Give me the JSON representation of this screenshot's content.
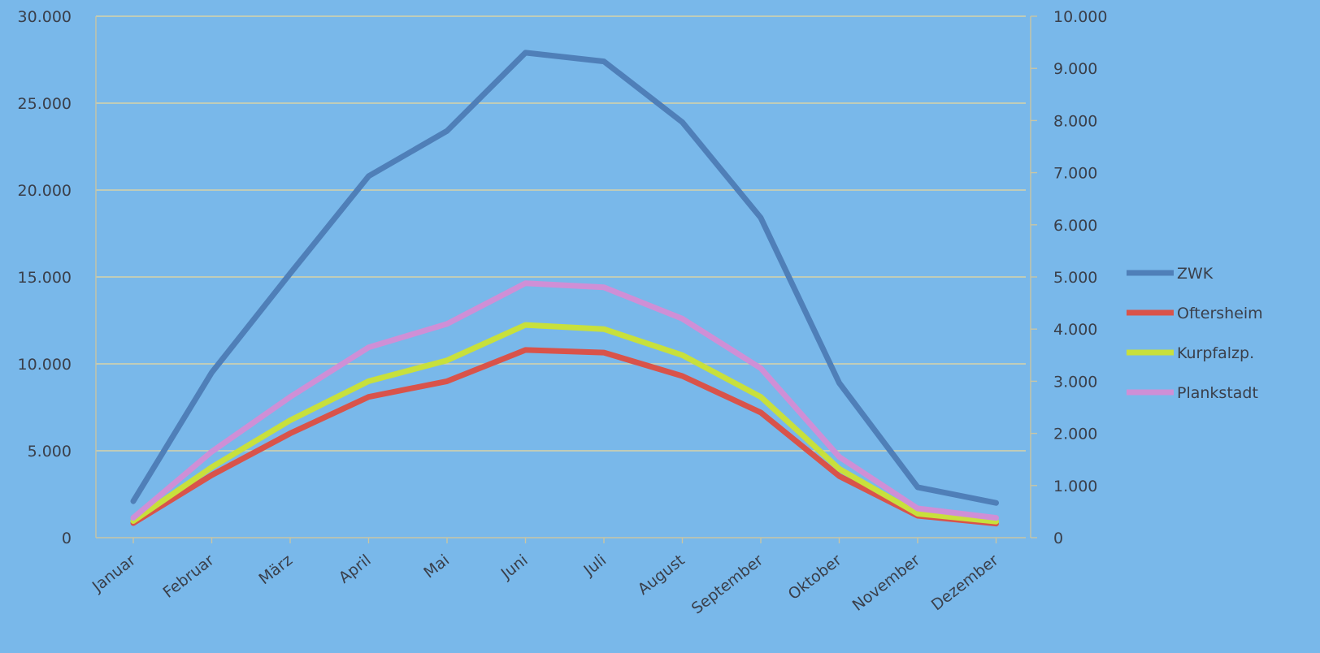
{
  "chart_data": {
    "type": "line",
    "title": "",
    "xlabel": "",
    "ylabel": "",
    "categories": [
      "Januar",
      "Februar",
      "März",
      "April",
      "Mai",
      "Juni",
      "Juli",
      "August",
      "September",
      "Oktober",
      "November",
      "Dezember"
    ],
    "y_left": {
      "min": 0,
      "max": 30000,
      "ticks": [
        0,
        5000,
        10000,
        15000,
        20000,
        25000,
        30000
      ],
      "tick_labels": [
        "0",
        "5.000",
        "10.000",
        "15.000",
        "20.000",
        "25.000",
        "30.000"
      ]
    },
    "y_right": {
      "min": 0,
      "max": 10000,
      "ticks": [
        0,
        1000,
        2000,
        3000,
        4000,
        5000,
        6000,
        7000,
        8000,
        9000,
        10000
      ],
      "tick_labels": [
        "0",
        "1.000",
        "2.000",
        "3.000",
        "4.000",
        "5.000",
        "6.000",
        "7.000",
        "8.000",
        "9.000",
        "10.000"
      ]
    },
    "grid": true,
    "legend_position": "right",
    "series": [
      {
        "name": "ZWK",
        "axis": "left",
        "color": "#4f7fb8",
        "values": [
          2100,
          9500,
          15200,
          20800,
          23400,
          27900,
          27400,
          23900,
          18400,
          8900,
          2900,
          2000
        ]
      },
      {
        "name": "Oftersheim",
        "axis": "right",
        "color": "#d9534a",
        "values": [
          280,
          1200,
          2000,
          2700,
          3000,
          3600,
          3550,
          3100,
          2400,
          1180,
          420,
          270
        ]
      },
      {
        "name": "Kurpfalzp.",
        "axis": "right",
        "color": "#c8e03c",
        "values": [
          320,
          1350,
          2250,
          3000,
          3400,
          4080,
          4000,
          3500,
          2700,
          1320,
          460,
          310
        ]
      },
      {
        "name": "Plankstadt",
        "axis": "right",
        "color": "#cf8fd6",
        "values": [
          380,
          1650,
          2700,
          3650,
          4100,
          4880,
          4800,
          4200,
          3250,
          1550,
          560,
          380
        ]
      }
    ]
  }
}
